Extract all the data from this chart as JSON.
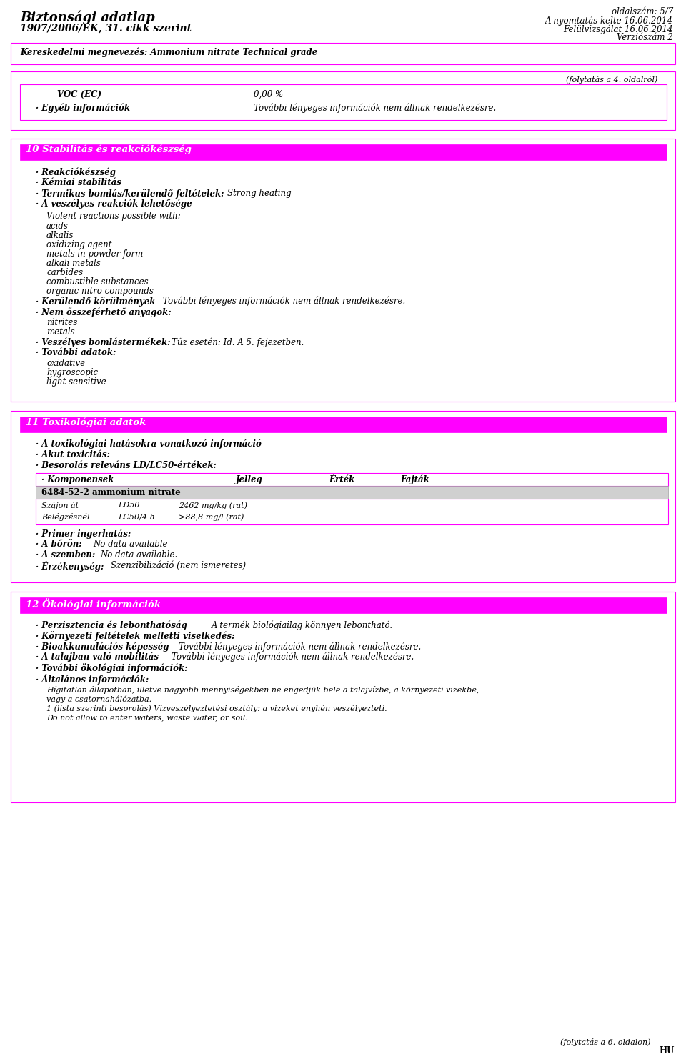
{
  "title_left": "Biztonsági adatlap",
  "title_left2": "1907/2006/EK, 31. cikk szerint",
  "title_right1": "oldalszám: 5/7",
  "title_right2": "A nyomtatás kelte 16.06.2014",
  "title_right3": "Felülvizsgálat 16.06.2014",
  "title_right4": "Verziószám 2",
  "magenta": "#FF00FF",
  "section1_title": "10 Stabilitás és reakciókészség",
  "section2_title": "11 Toxikológiai adatok",
  "section3_title": "12 Ökológiai információk",
  "kereskedelmi": "Kereskedelmi megnevezés: Ammonium nitrate Technical grade",
  "folytas_4": "(folytatás a 4. oldalról)",
  "folytas_6": "(folytatás a 6. oldalon)",
  "hu": "HU"
}
